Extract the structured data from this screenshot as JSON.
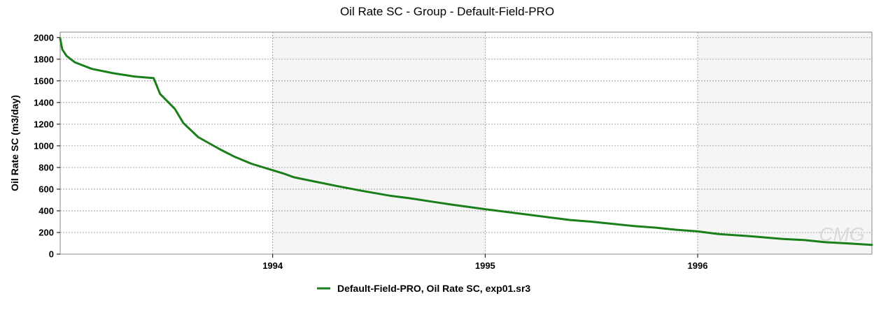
{
  "chart_data": {
    "type": "line",
    "title": "Oil Rate SC - Group - Default-Field-PRO",
    "xlabel": "",
    "ylabel": "Oil Rate SC (m3/day)",
    "xlim": [
      1993.0,
      1996.82
    ],
    "ylim": [
      0,
      2050
    ],
    "yticks": [
      "0",
      "200",
      "400",
      "600",
      "800",
      "1000",
      "1200",
      "1400",
      "1600",
      "1800",
      "2000"
    ],
    "xticks": [
      "1994",
      "1995",
      "1996"
    ],
    "grid": true,
    "legend": "bottom-center",
    "series": [
      {
        "name": "Default-Field-PRO, Oil Rate SC, exp01.sr3",
        "color": "#1a7f1a",
        "x": [
          1993.0,
          1993.01,
          1993.03,
          1993.07,
          1993.15,
          1993.25,
          1993.35,
          1993.44,
          1993.47,
          1993.54,
          1993.58,
          1993.65,
          1993.75,
          1993.82,
          1993.9,
          1994.0,
          1994.05,
          1994.1,
          1994.2,
          1994.3,
          1994.42,
          1994.55,
          1994.65,
          1994.75,
          1994.85,
          1995.0,
          1995.1,
          1995.2,
          1995.3,
          1995.4,
          1995.5,
          1995.6,
          1995.7,
          1995.8,
          1995.9,
          1996.0,
          1996.1,
          1996.25,
          1996.4,
          1996.5,
          1996.6,
          1996.7,
          1996.82
        ],
        "values": [
          1990,
          1890,
          1830,
          1770,
          1710,
          1670,
          1640,
          1625,
          1480,
          1340,
          1210,
          1080,
          970,
          900,
          835,
          775,
          745,
          710,
          670,
          630,
          585,
          540,
          515,
          485,
          455,
          415,
          390,
          365,
          340,
          315,
          300,
          280,
          260,
          245,
          225,
          210,
          185,
          165,
          140,
          130,
          110,
          100,
          85
        ]
      }
    ]
  },
  "watermark": "CMG",
  "colors": {
    "plot_background": "#f5f5f5",
    "band_light": "#ffffff",
    "grid": "#8c8c8c",
    "line": "#1a7f1a"
  }
}
